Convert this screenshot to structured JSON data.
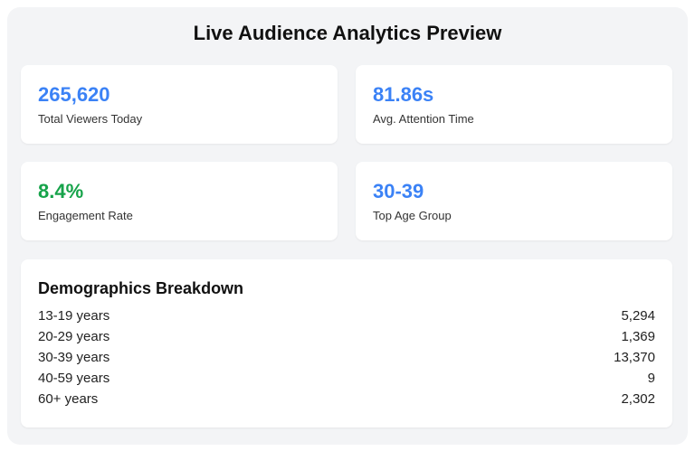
{
  "header": {
    "title": "Live Audience Analytics Preview"
  },
  "cards": [
    {
      "value": "265,620",
      "label": "Total Viewers Today",
      "color": "#3b82f6"
    },
    {
      "value": "81.86s",
      "label": "Avg. Attention Time",
      "color": "#3b82f6"
    },
    {
      "value": "8.4%",
      "label": "Engagement Rate",
      "color": "#16a34a"
    },
    {
      "value": "30-39",
      "label": "Top Age Group",
      "color": "#3b82f6"
    }
  ],
  "demographics": {
    "title": "Demographics Breakdown",
    "rows": [
      [
        "13-19 years",
        "5,294"
      ],
      [
        "20-29 years",
        "1,369"
      ],
      [
        "30-39 years",
        "13,370"
      ],
      [
        "40-59 years",
        "9"
      ],
      [
        "60+ years",
        "2,302"
      ]
    ]
  }
}
